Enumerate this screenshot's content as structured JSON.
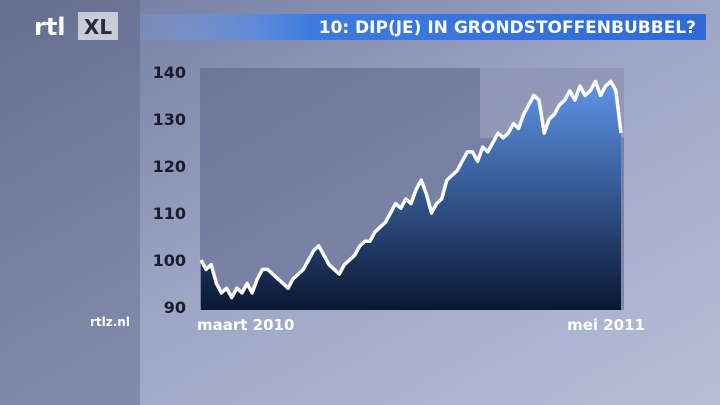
{
  "chart_data": {
    "type": "area",
    "title": "10: DIP(JE) IN GRONDSTOFFENBUBBEL?",
    "logo": [
      "rtl",
      "XL"
    ],
    "source": "rtlz.nl",
    "categories": [
      "maart 2010",
      null,
      null,
      null,
      null,
      null,
      null,
      null,
      null,
      null,
      null,
      null,
      null,
      null,
      null,
      null,
      null,
      null,
      null,
      null,
      null,
      null,
      null,
      null,
      null,
      null,
      null,
      null,
      null,
      null,
      null,
      null,
      null,
      null,
      null,
      null,
      null,
      null,
      null,
      null,
      null,
      null,
      null,
      null,
      null,
      null,
      null,
      null,
      null,
      null,
      null,
      null,
      null,
      null,
      null,
      null,
      null,
      null,
      null,
      null,
      null,
      null,
      null,
      null,
      null,
      null,
      null,
      null,
      null,
      null,
      null,
      null,
      null,
      null,
      null,
      null,
      null,
      null,
      null,
      null,
      null,
      null,
      "mei 2011"
    ],
    "values": [
      100,
      98,
      99,
      95,
      93,
      94,
      92,
      94,
      93,
      95,
      93,
      96,
      98,
      98,
      97,
      96,
      95,
      94,
      96,
      97,
      98,
      100,
      102,
      103,
      101,
      99,
      98,
      97,
      99,
      100,
      101,
      103,
      104,
      104,
      106,
      107,
      108,
      110,
      112,
      111,
      113,
      112,
      115,
      117,
      114,
      110,
      112,
      113,
      117,
      118,
      119,
      121,
      123,
      123,
      121,
      124,
      123,
      125,
      127,
      126,
      127,
      129,
      128,
      131,
      133,
      135,
      134,
      127,
      130,
      131,
      133,
      134,
      136,
      134,
      137,
      135,
      136,
      138,
      135,
      137,
      138,
      136,
      127
    ],
    "line_color": "#ffffff",
    "fill_top": "#5e95e8",
    "fill_bottom": "#0a1733",
    "ylim": [
      90,
      140
    ],
    "yticks": [
      90,
      100,
      110,
      120,
      130,
      140
    ],
    "grid": false
  }
}
